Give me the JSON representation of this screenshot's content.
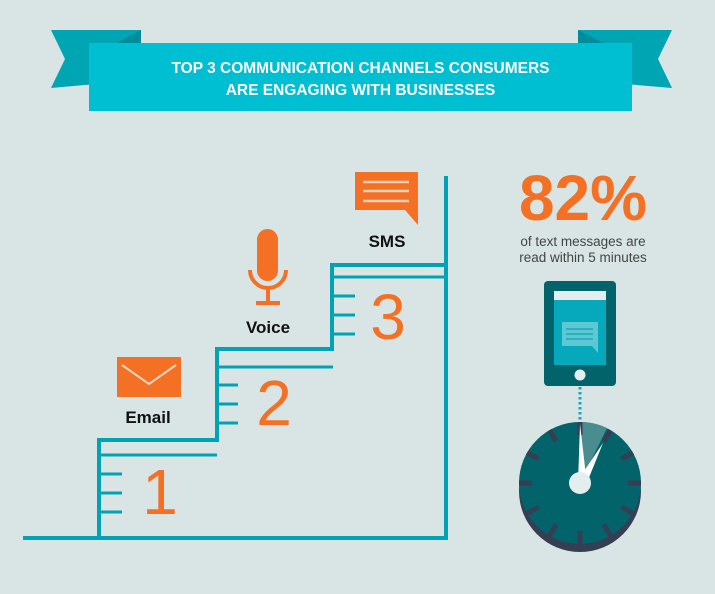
{
  "banner": {
    "title_line1": "TOP 3 COMMUNICATION CHANNELS CONSUMERS",
    "title_line2": "ARE ENGAGING WITH BUSINESSES"
  },
  "steps": [
    {
      "rank": "1",
      "label": "Email",
      "icon": "envelope-icon"
    },
    {
      "rank": "2",
      "label": "Voice",
      "icon": "microphone-icon"
    },
    {
      "rank": "3",
      "label": "SMS",
      "icon": "chat-bubble-icon"
    }
  ],
  "stat": {
    "value": "82%",
    "line1": "of text messages are",
    "line2": "read within 5 minutes"
  },
  "colors": {
    "background": "#d9e5e5",
    "banner": "#00bfd3",
    "accent": "#f47024",
    "stairs": "#00a3b4",
    "dark_teal": "#02636b",
    "clock_shadow": "#363e52"
  }
}
